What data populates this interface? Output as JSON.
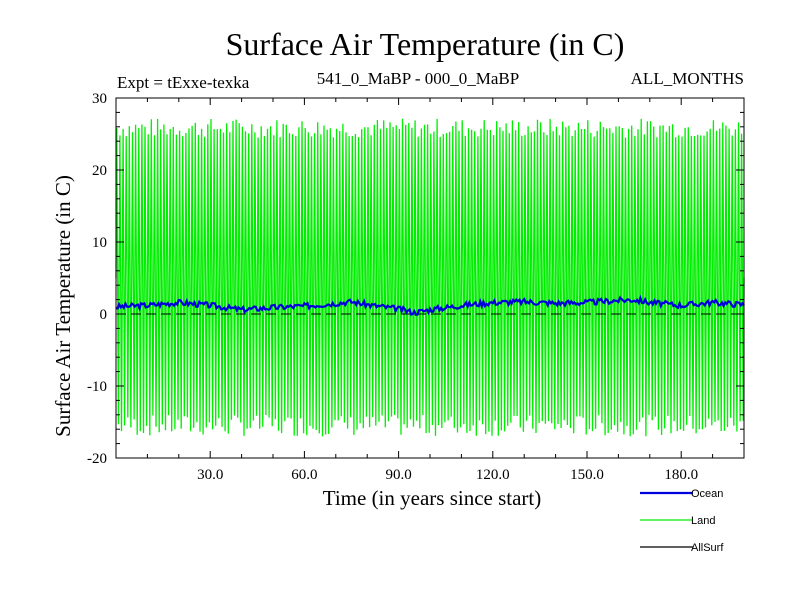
{
  "chart_data": {
    "type": "line",
    "title": "Surface Air Temperature (in C)",
    "subtitle_left": "Expt = tExxe-texka",
    "subtitle_center": "541_0_MaBP - 000_0_MaBP",
    "subtitle_right": "ALL_MONTHS",
    "xlabel": "Time (in years since start)",
    "ylabel": "Surface Air Temperature (in C)",
    "xlim": [
      0,
      200
    ],
    "ylim": [
      -20,
      30
    ],
    "x_ticks": [
      30,
      60,
      90,
      120,
      150,
      180
    ],
    "x_tick_labels": [
      "30.0",
      "60.0",
      "90.0",
      "120.0",
      "150.0",
      "180.0"
    ],
    "y_ticks": [
      -20,
      -10,
      0,
      10,
      20,
      30
    ],
    "y_tick_labels": [
      "-20",
      "-10",
      "0",
      "10",
      "20",
      "30"
    ],
    "zero_line": 0,
    "series": [
      {
        "name": "Land",
        "color": "#00ee00",
        "kind": "seasonal-envelope",
        "annual_max_range": [
          24.5,
          27.2
        ],
        "annual_min_range": [
          -17.0,
          -14.0
        ],
        "mean": 5.0
      },
      {
        "name": "Ocean",
        "color": "#0000dd",
        "x": [
          0,
          10,
          20,
          30,
          40,
          50,
          60,
          70,
          75,
          80,
          90,
          95,
          100,
          110,
          120,
          130,
          140,
          150,
          160,
          165,
          170,
          180,
          190,
          200
        ],
        "y": [
          1.0,
          1.2,
          1.6,
          1.2,
          0.6,
          0.9,
          1.1,
          1.5,
          1.7,
          1.3,
          0.7,
          0.2,
          0.6,
          1.2,
          1.6,
          1.7,
          1.5,
          1.6,
          1.9,
          2.0,
          1.6,
          1.2,
          1.6,
          1.3
        ]
      },
      {
        "name": "AllSurf",
        "color": "#000000",
        "x": [
          0,
          200
        ],
        "y": [
          1.0,
          1.0
        ]
      }
    ],
    "legend": {
      "placement": "bottom-right",
      "entries": [
        "Ocean",
        "Land",
        "AllSurf"
      ]
    }
  }
}
